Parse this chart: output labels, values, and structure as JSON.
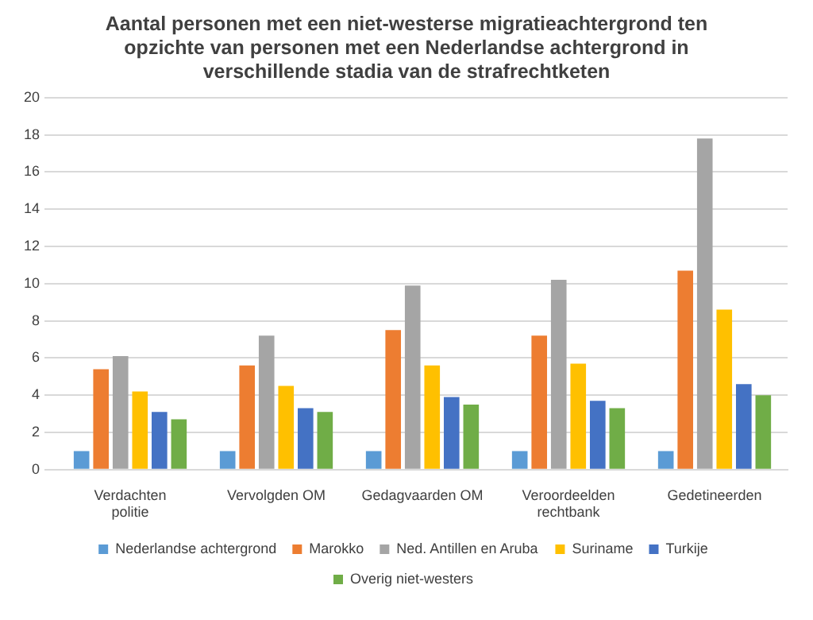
{
  "chart_data": {
    "type": "bar",
    "title": "Aantal personen met een niet-westerse migratieachtergrond ten opzichte van personen met een Nederlandse achtergrond in verschillende stadia van de strafrechtketen",
    "categories": [
      "Verdachten politie",
      "Vervolgden OM",
      "Gedagvaarden OM",
      "Veroordeelden rechtbank",
      "Gedetineerden"
    ],
    "series": [
      {
        "name": "Nederlandse achtergrond",
        "color": "#5b9bd5",
        "values": [
          1,
          1,
          1,
          1,
          1
        ]
      },
      {
        "name": "Marokko",
        "color": "#ed7d31",
        "values": [
          5.4,
          5.6,
          7.5,
          7.2,
          10.7
        ]
      },
      {
        "name": "Ned. Antillen en Aruba",
        "color": "#a5a5a5",
        "values": [
          6.1,
          7.2,
          9.9,
          10.2,
          17.8
        ]
      },
      {
        "name": "Suriname",
        "color": "#ffc000",
        "values": [
          4.2,
          4.5,
          5.6,
          5.7,
          8.6
        ]
      },
      {
        "name": "Turkije",
        "color": "#4472c4",
        "values": [
          3.1,
          3.3,
          3.9,
          3.7,
          4.6
        ]
      },
      {
        "name": "Overig niet-westers",
        "color": "#70ad47",
        "values": [
          2.7,
          3.1,
          3.5,
          3.3,
          4.0
        ]
      }
    ],
    "ylim": [
      0,
      20
    ],
    "yticks": [
      0,
      2,
      4,
      6,
      8,
      10,
      12,
      14,
      16,
      18,
      20
    ],
    "grid": "y",
    "legend": "bottom"
  }
}
